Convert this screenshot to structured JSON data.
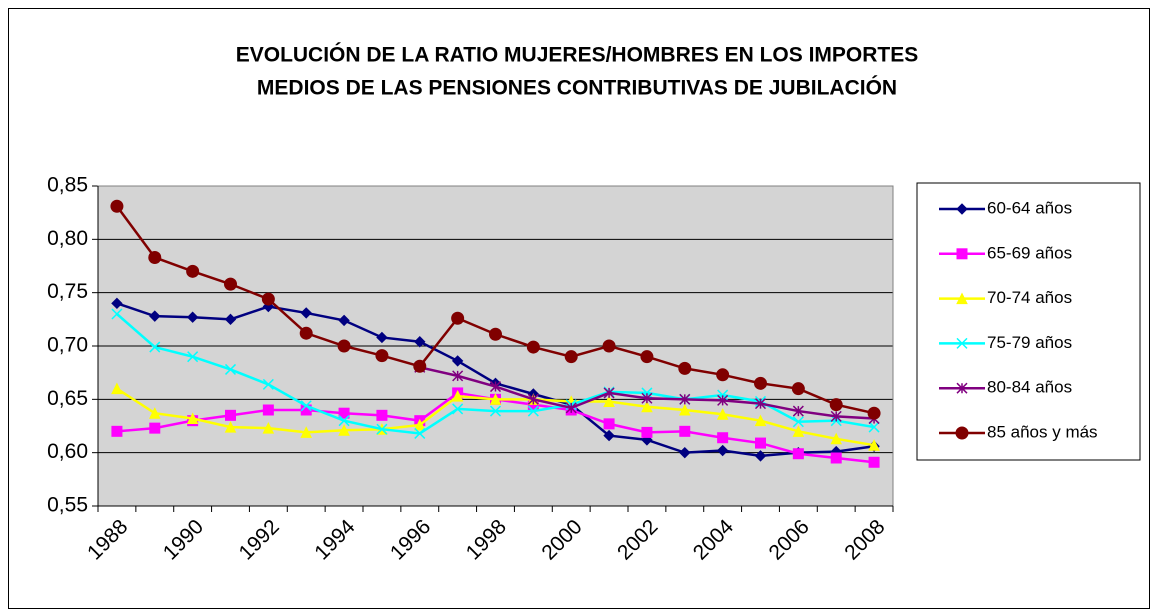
{
  "chart_data": {
    "type": "line",
    "title": [
      "EVOLUCIÓN DE LA RATIO MUJERES/HOMBRES EN LOS IMPORTES",
      "MEDIOS DE LAS PENSIONES CONTRIBUTIVAS DE JUBILACIÓN"
    ],
    "categories": [
      "1988",
      null,
      "1990",
      null,
      "1992",
      null,
      "1994",
      null,
      "1996",
      null,
      "1998",
      null,
      "2000",
      null,
      "2002",
      null,
      "2004",
      null,
      "2006",
      null,
      "2008"
    ],
    "ylim": [
      0.55,
      0.85
    ],
    "yticks": [
      {
        "value": 0.55,
        "label": "0,55"
      },
      {
        "value": 0.6,
        "label": "0,60"
      },
      {
        "value": 0.65,
        "label": "0,65"
      },
      {
        "value": 0.7,
        "label": "0,70"
      },
      {
        "value": 0.75,
        "label": "0,75"
      },
      {
        "value": 0.8,
        "label": "0,80"
      },
      {
        "value": 0.85,
        "label": "0,85"
      }
    ],
    "grid": true,
    "legend": "right",
    "series": [
      {
        "name": "60-64 años",
        "color": "#000080",
        "marker": "diamond",
        "values": [
          0.74,
          0.728,
          0.727,
          0.725,
          0.737,
          0.731,
          0.724,
          0.708,
          0.704,
          0.686,
          0.665,
          0.655,
          0.645,
          0.616,
          0.612,
          0.6,
          0.602,
          0.597,
          0.6,
          0.601,
          0.606
        ]
      },
      {
        "name": "65-69 años",
        "color": "#ff00ff",
        "marker": "square",
        "values": [
          0.62,
          0.623,
          0.63,
          0.635,
          0.64,
          0.64,
          0.637,
          0.635,
          0.63,
          0.656,
          0.65,
          0.645,
          0.64,
          0.627,
          0.619,
          0.62,
          0.614,
          0.609,
          0.599,
          0.595,
          0.591
        ]
      },
      {
        "name": "70-74 años",
        "color": "#ffff00",
        "marker": "triangle",
        "values": [
          0.66,
          0.637,
          0.632,
          0.624,
          0.623,
          0.619,
          0.621,
          0.622,
          0.626,
          0.653,
          0.65,
          0.65,
          0.648,
          0.648,
          0.643,
          0.64,
          0.636,
          0.63,
          0.62,
          0.613,
          0.607
        ]
      },
      {
        "name": "75-79 años",
        "color": "#00ffff",
        "marker": "x",
        "values": [
          0.73,
          0.699,
          0.69,
          0.678,
          0.664,
          0.644,
          0.63,
          0.622,
          0.618,
          0.641,
          0.639,
          0.639,
          0.645,
          0.657,
          0.656,
          0.65,
          0.654,
          0.648,
          0.629,
          0.63,
          0.624
        ]
      },
      {
        "name": "80-84 años",
        "color": "#800080",
        "marker": "star",
        "values": [
          null,
          null,
          null,
          null,
          null,
          null,
          null,
          null,
          0.68,
          0.672,
          0.662,
          0.65,
          0.642,
          0.656,
          0.651,
          0.65,
          0.649,
          0.646,
          0.639,
          0.634,
          0.632
        ]
      },
      {
        "name": "85 años  y más",
        "color": "#800000",
        "marker": "circle",
        "values": [
          0.831,
          0.783,
          0.77,
          0.758,
          0.744,
          0.712,
          0.7,
          0.691,
          0.681,
          0.726,
          0.711,
          0.699,
          0.69,
          0.7,
          0.69,
          0.679,
          0.673,
          0.665,
          0.66,
          0.645,
          0.637
        ]
      }
    ]
  }
}
